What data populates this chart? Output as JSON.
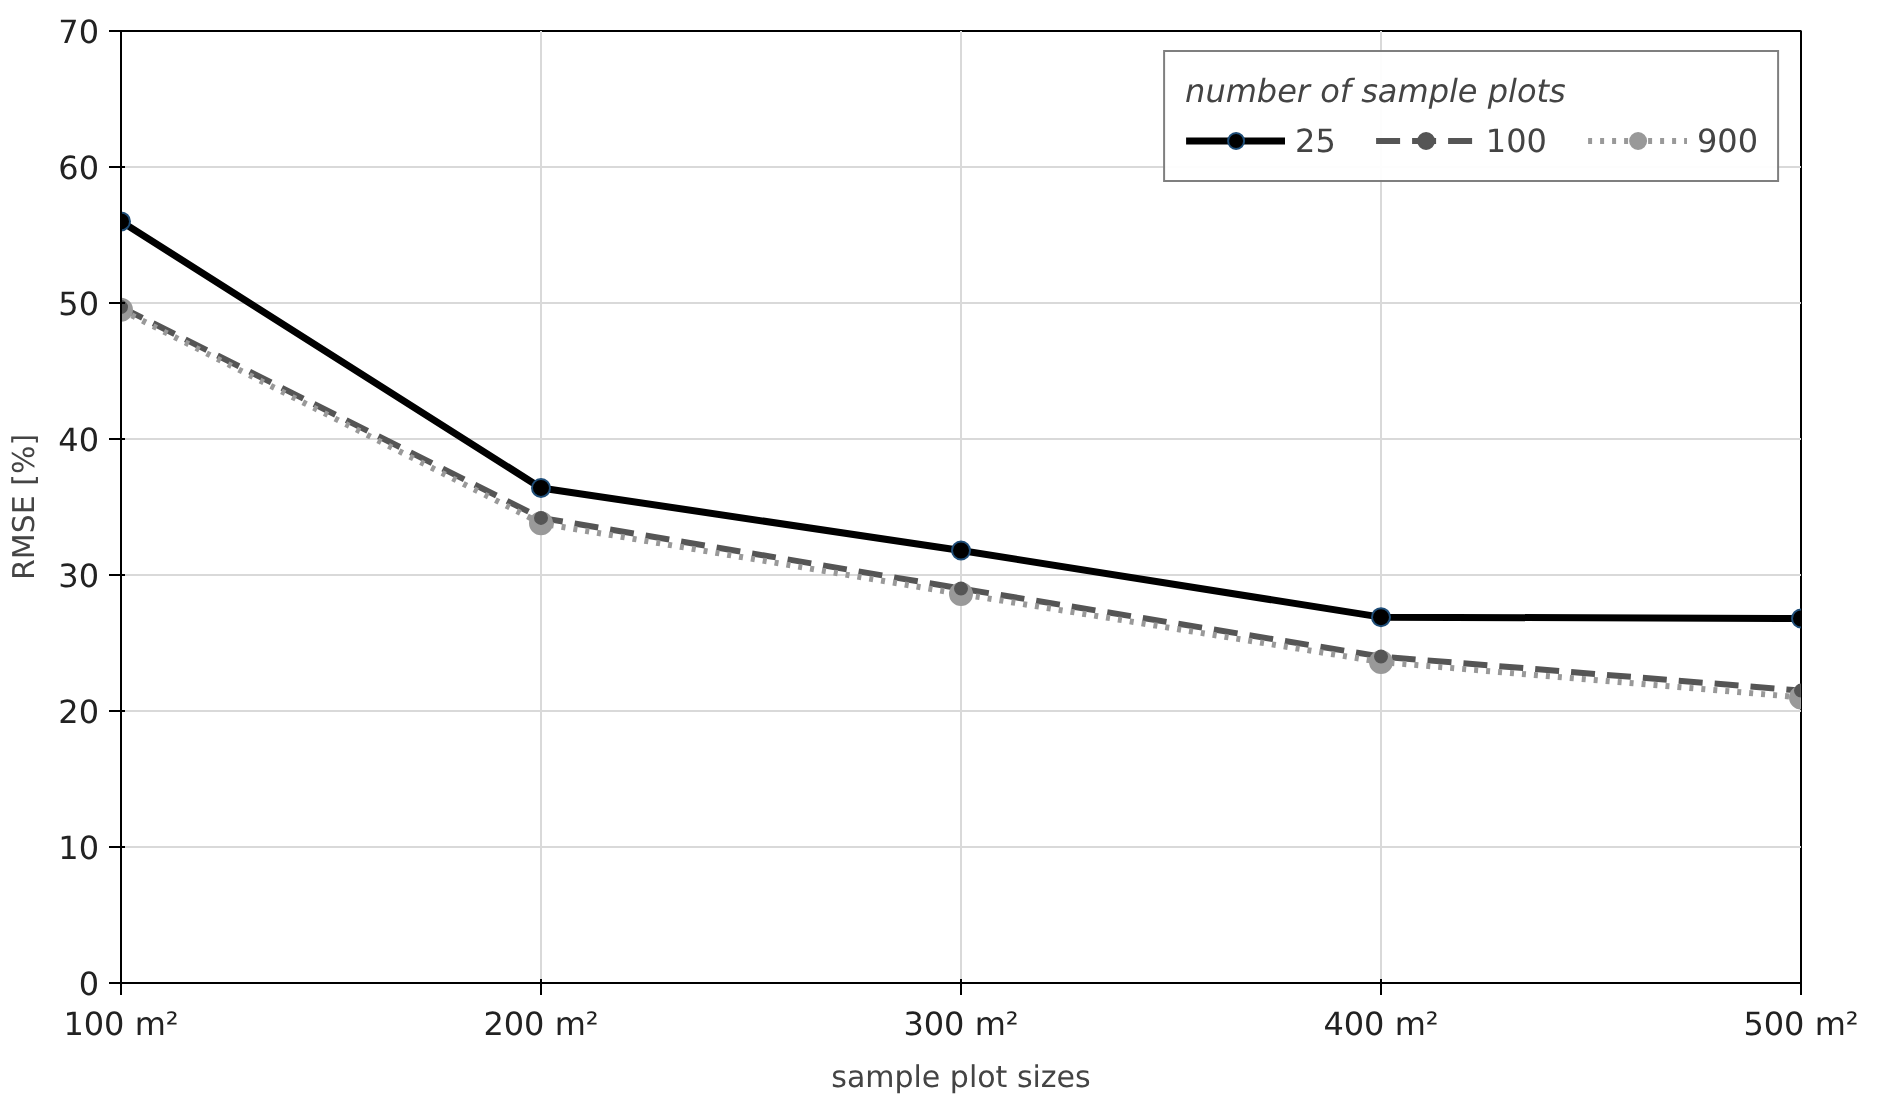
{
  "chart_data": {
    "type": "line",
    "xlabel": "sample plot sizes",
    "ylabel": "RMSE [%]",
    "legend_title": "number of sample plots",
    "categories": [
      "100 m²",
      "200 m²",
      "300 m²",
      "400 m²",
      "500 m²"
    ],
    "series": [
      {
        "name": "25",
        "color": "#000000",
        "line_style": "solid",
        "values": [
          56,
          36.4,
          31.8,
          26.9,
          26.8
        ]
      },
      {
        "name": "100",
        "color": "#555555",
        "line_style": "dashed",
        "values": [
          49.7,
          34.2,
          29,
          24,
          21.5
        ]
      },
      {
        "name": "900",
        "color": "#999999",
        "line_style": "dotted",
        "values": [
          49.5,
          33.8,
          28.6,
          23.6,
          21
        ]
      }
    ],
    "ylim": [
      0,
      70
    ],
    "yticks": [
      0,
      10,
      20,
      30,
      40,
      50,
      60,
      70
    ],
    "grid": true,
    "legend": "top right",
    "marker": "circle"
  }
}
